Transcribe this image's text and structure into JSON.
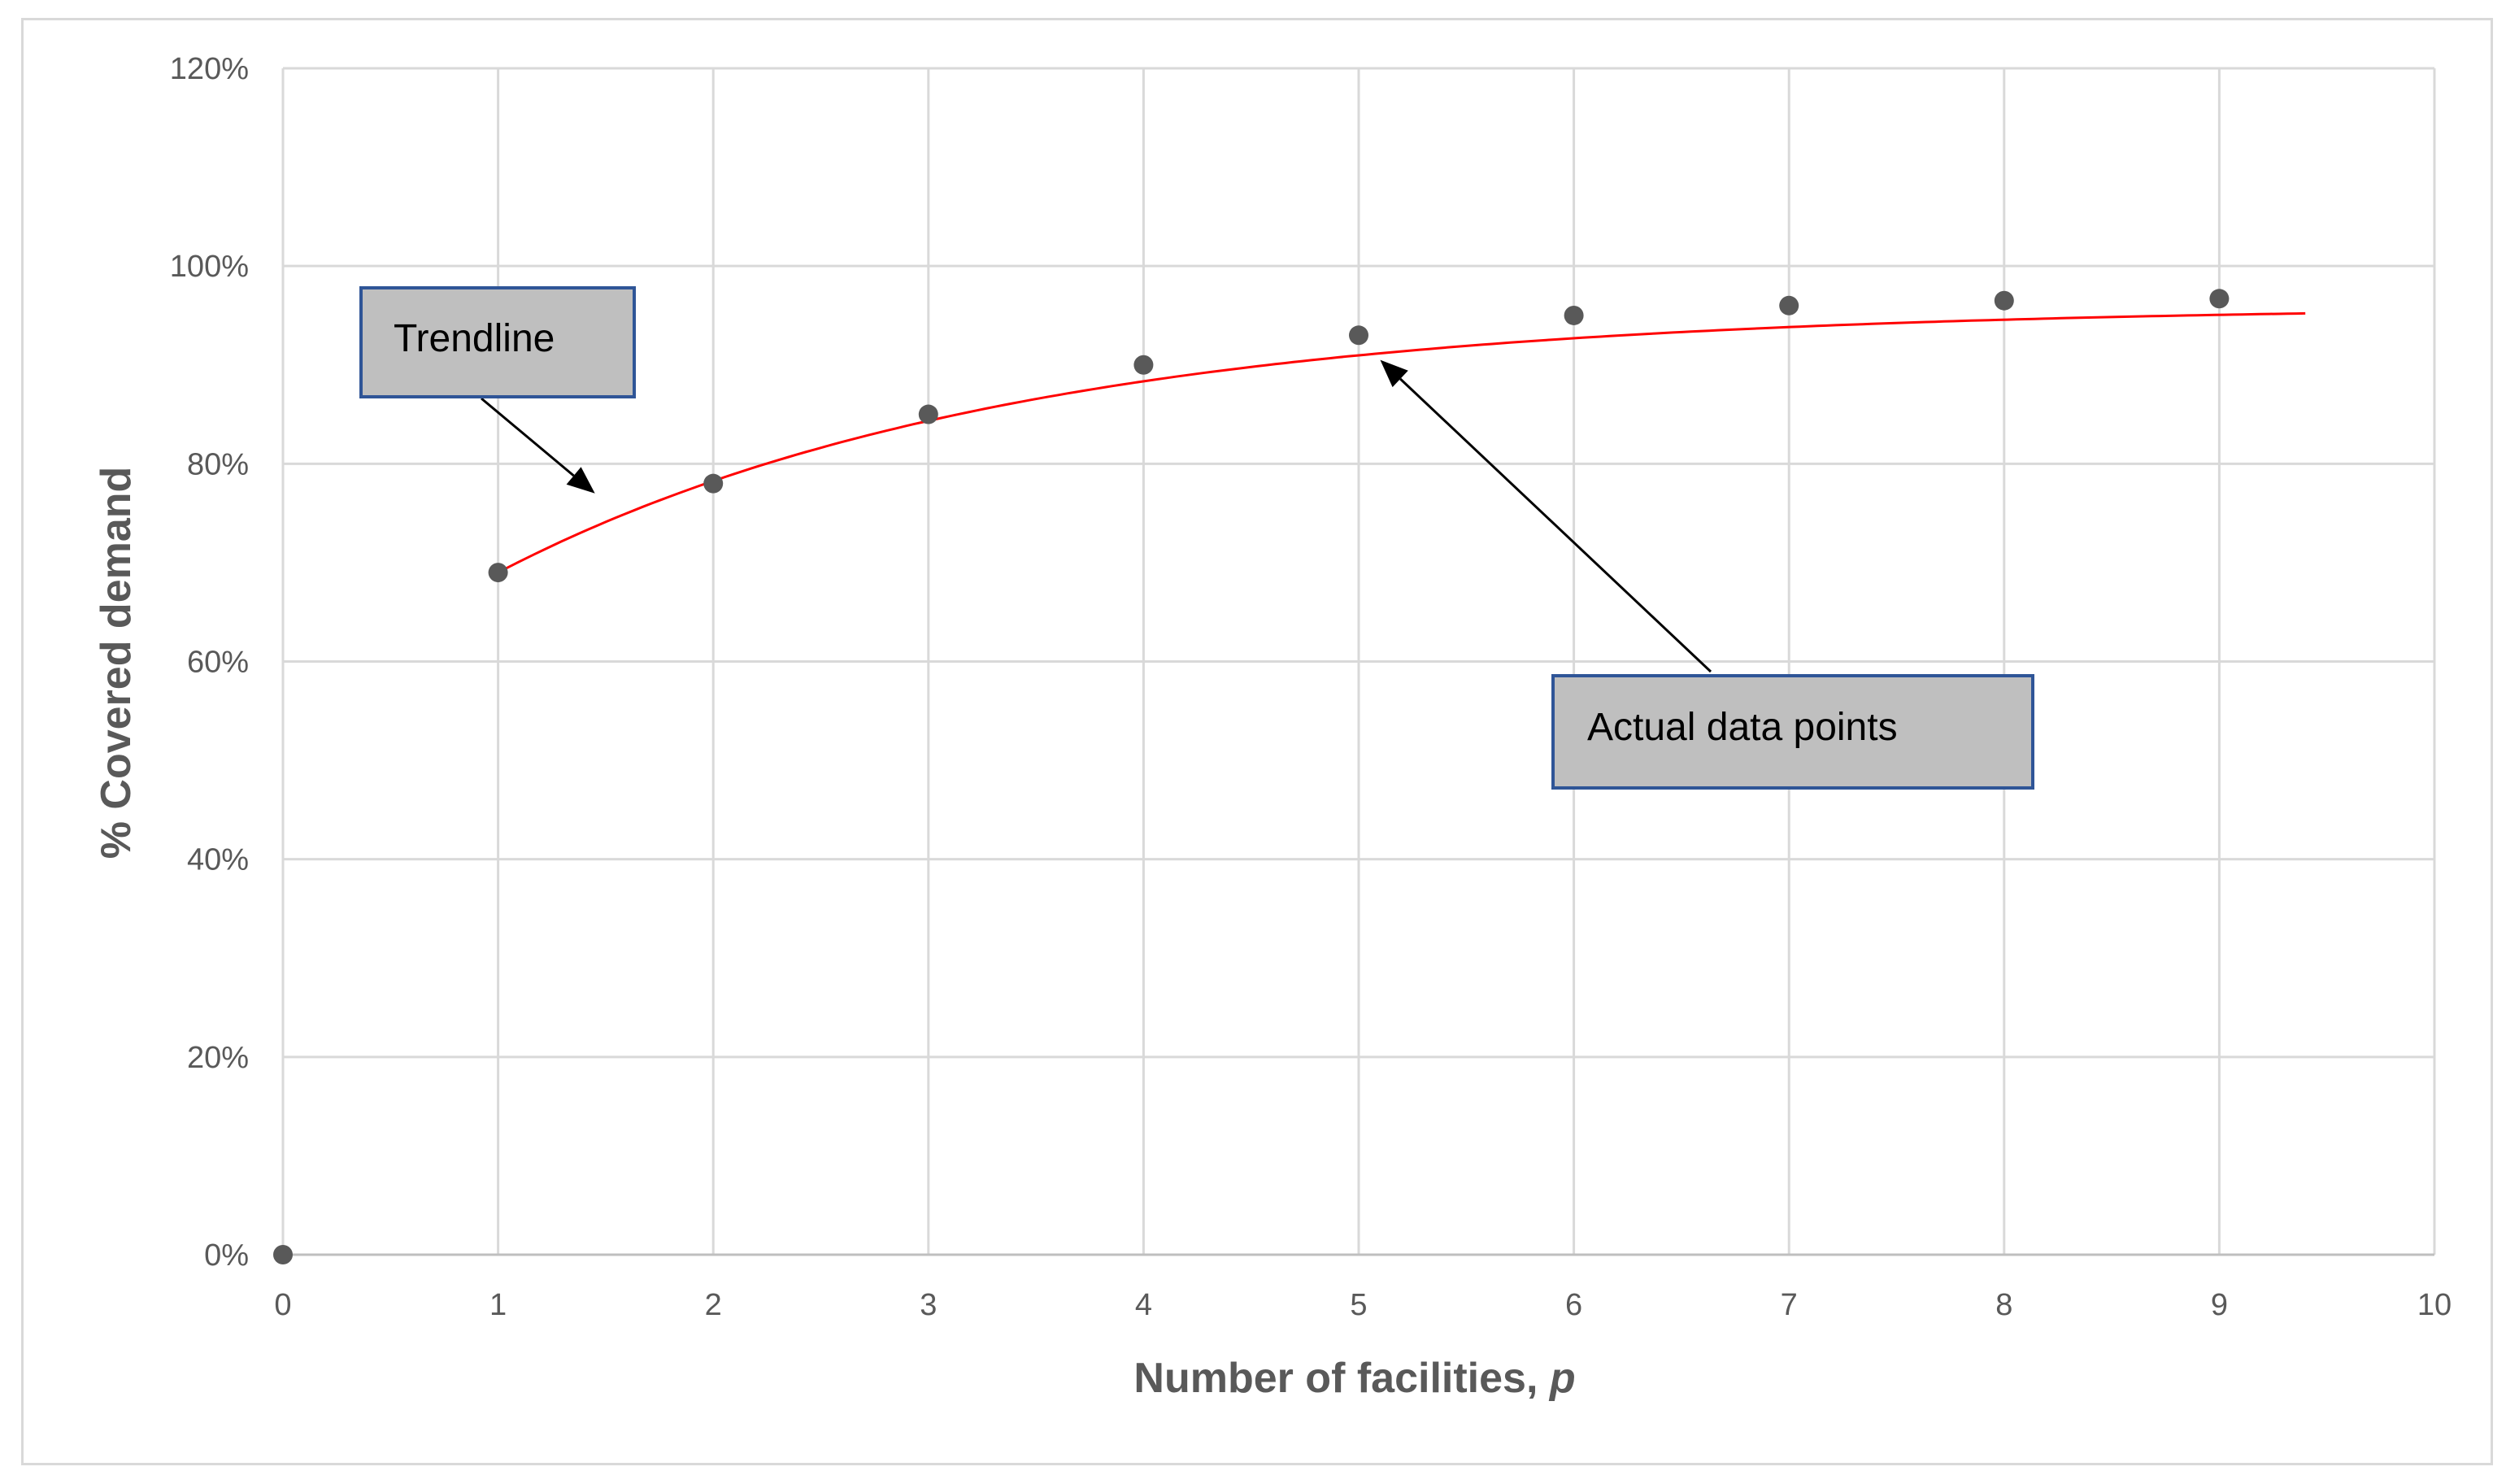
{
  "chart_data": {
    "type": "scatter",
    "xlabel_main": "Number of facilities, ",
    "xlabel_var": "p",
    "ylabel": "% Covered demand",
    "xlim": [
      0,
      10
    ],
    "ylim": [
      0,
      120
    ],
    "x_ticks": [
      "0",
      "1",
      "2",
      "3",
      "4",
      "5",
      "6",
      "7",
      "8",
      "9",
      "10"
    ],
    "y_ticks": [
      "0%",
      "20%",
      "40%",
      "60%",
      "80%",
      "100%",
      "120%"
    ],
    "grid": true,
    "series": [
      {
        "kind": "points",
        "color": "#595959",
        "x": [
          0,
          1,
          2,
          3,
          4,
          5,
          6,
          7,
          8,
          9
        ],
        "y": [
          0,
          69,
          78,
          85,
          90,
          93,
          95,
          96,
          96.5,
          96.7
        ]
      },
      {
        "kind": "trendline",
        "color": "#ff0000",
        "x_range": [
          1,
          9.4
        ],
        "y_at_start": 69,
        "y_plateau": 96
      }
    ],
    "annotations": [
      {
        "text": "Trendline",
        "points_to": {
          "x": 1.45,
          "y": 77
        }
      },
      {
        "text": "Actual data points",
        "points_to": {
          "x": 5.1,
          "y": 90.5
        }
      }
    ]
  },
  "colors": {
    "grid": "#d9d9d9",
    "callout_fill": "#bfbfbf",
    "callout_border": "#2f5597"
  }
}
